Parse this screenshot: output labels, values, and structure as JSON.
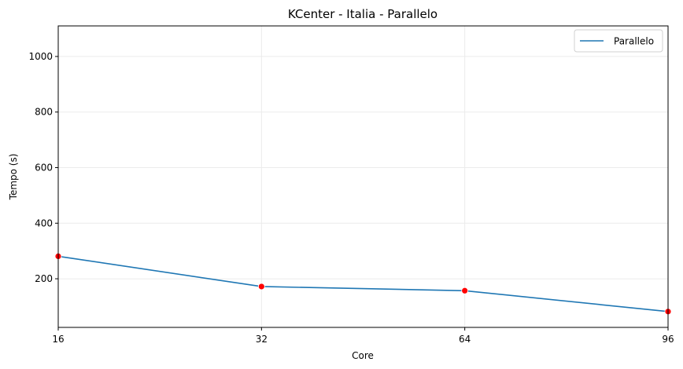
{
  "chart_data": {
    "type": "line",
    "title": "KCenter - Italia - Parallelo",
    "xlabel": "Core",
    "ylabel": "Tempo (s)",
    "categories": [
      "16",
      "32",
      "64",
      "96"
    ],
    "series": [
      {
        "name": "Parallelo",
        "values": [
          281,
          172,
          157,
          82
        ],
        "color": "#1f77b4",
        "marker_color": "#ff0000"
      }
    ],
    "ylim": [
      25,
      1110
    ],
    "yticks": [
      200,
      400,
      600,
      800,
      1000
    ],
    "grid": true,
    "legend": "top-right"
  }
}
